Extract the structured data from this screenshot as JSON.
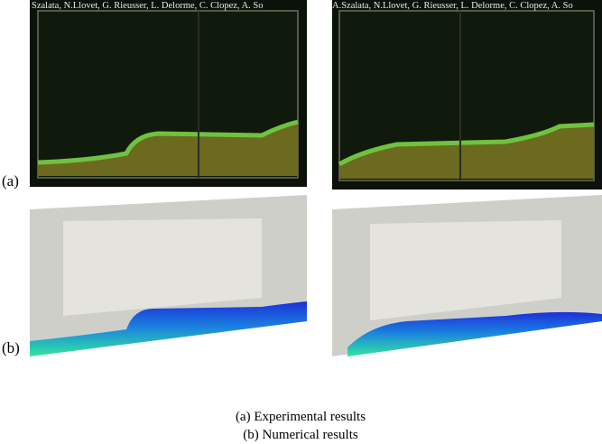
{
  "row_a": {
    "label": "(a)",
    "watermarks": [
      "Szalata, N.Llovet, G. Rieusser, L. Delorme, C. Clopez, A. So",
      "A.Szalata, N.Llovet, G. Rieusser, L. Delorme, C. Clopez, A. So"
    ]
  },
  "row_b": {
    "label": "(b)"
  },
  "caption": {
    "lines": [
      "(a) Experimental results",
      "(b) Numerical results"
    ]
  }
}
